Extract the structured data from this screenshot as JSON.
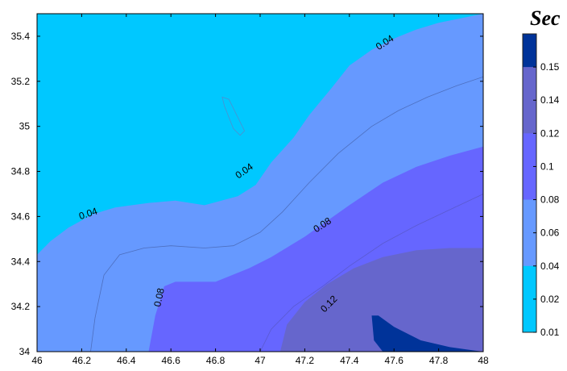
{
  "chart_data": {
    "type": "contour",
    "title": "",
    "xlabel": "",
    "ylabel": "",
    "xlim": [
      46,
      48
    ],
    "ylim": [
      34,
      35.5
    ],
    "x_ticks": [
      "46",
      "46.2",
      "46.4",
      "46.6",
      "46.8",
      "47",
      "47.2",
      "47.4",
      "47.6",
      "47.8",
      "48"
    ],
    "y_ticks": [
      "34",
      "34.2",
      "34.4",
      "34.6",
      "34.8",
      "35",
      "35.2",
      "35.4"
    ],
    "colorbar": {
      "unit_label": "Sec",
      "ticks": [
        "0.15",
        "0.14",
        "0.12",
        "0.1",
        "0.08",
        "0.06",
        "0.04",
        "0.02",
        "0.01"
      ],
      "colors": [
        "#00C8FF",
        "#6699FF",
        "#6666FF",
        "#6666CC",
        "#003399"
      ]
    },
    "contour_labels": [
      {
        "text": "0.04",
        "x": 46.23,
        "y": 34.61,
        "angle": -18
      },
      {
        "text": "0.04",
        "x": 46.93,
        "y": 34.8,
        "angle": -35
      },
      {
        "text": "0.04",
        "x": 47.56,
        "y": 35.37,
        "angle": -33
      },
      {
        "text": "0.08",
        "x": 47.28,
        "y": 34.56,
        "angle": -33
      },
      {
        "text": "0.08",
        "x": 46.55,
        "y": 34.24,
        "angle": -78
      },
      {
        "text": "0.12",
        "x": 47.31,
        "y": 34.21,
        "angle": -45
      }
    ],
    "levels": [
      {
        "name": "lt_0.04",
        "color": "#00C8FF",
        "points": [
          [
            46,
            35.5
          ],
          [
            48,
            35.5
          ],
          [
            48,
            34
          ],
          [
            46,
            34
          ]
        ]
      },
      {
        "name": "0.04_0.08",
        "color": "#6699FF",
        "points": [
          [
            46,
            34.43
          ],
          [
            46.06,
            34.49
          ],
          [
            46.14,
            34.55
          ],
          [
            46.25,
            34.61
          ],
          [
            46.35,
            34.64
          ],
          [
            46.5,
            34.66
          ],
          [
            46.62,
            34.67
          ],
          [
            46.75,
            34.65
          ],
          [
            46.9,
            34.69
          ],
          [
            46.98,
            34.74
          ],
          [
            47.05,
            34.84
          ],
          [
            47.15,
            34.95
          ],
          [
            47.22,
            35.05
          ],
          [
            47.32,
            35.17
          ],
          [
            47.4,
            35.27
          ],
          [
            47.5,
            35.34
          ],
          [
            47.6,
            35.39
          ],
          [
            47.7,
            35.43
          ],
          [
            47.8,
            35.46
          ],
          [
            48,
            35.5
          ],
          [
            48,
            34
          ],
          [
            46,
            34
          ]
        ]
      },
      {
        "name": "0.08_0.12",
        "color": "#6666FF",
        "points": [
          [
            46.5,
            34
          ],
          [
            46.53,
            34.16
          ],
          [
            46.57,
            34.29
          ],
          [
            46.62,
            34.31
          ],
          [
            46.8,
            34.31
          ],
          [
            46.95,
            34.37
          ],
          [
            47.05,
            34.42
          ],
          [
            47.2,
            34.51
          ],
          [
            47.4,
            34.65
          ],
          [
            47.55,
            34.75
          ],
          [
            47.7,
            34.82
          ],
          [
            47.85,
            34.87
          ],
          [
            48,
            34.91
          ],
          [
            48,
            34
          ]
        ]
      },
      {
        "name": "0.12_0.15",
        "color": "#6666CC",
        "points": [
          [
            47.09,
            34
          ],
          [
            47.12,
            34.12
          ],
          [
            47.2,
            34.22
          ],
          [
            47.3,
            34.3
          ],
          [
            47.42,
            34.37
          ],
          [
            47.55,
            34.42
          ],
          [
            47.7,
            34.45
          ],
          [
            47.85,
            34.46
          ],
          [
            48,
            34.46
          ],
          [
            48,
            34
          ]
        ]
      },
      {
        "name": "gt_0.15",
        "color": "#003399",
        "points": [
          [
            47.5,
            34.16
          ],
          [
            47.53,
            34.16
          ],
          [
            47.6,
            34.11
          ],
          [
            47.72,
            34.05
          ],
          [
            47.85,
            34.02
          ],
          [
            47.96,
            34.005
          ],
          [
            48,
            34
          ],
          [
            47.55,
            34
          ],
          [
            47.51,
            34.05
          ]
        ]
      }
    ],
    "contour_lines": [
      {
        "color": "#4d6fbf",
        "points": [
          [
            46.24,
            34
          ],
          [
            46.26,
            34.15
          ],
          [
            46.3,
            34.34
          ],
          [
            46.37,
            34.43
          ],
          [
            46.48,
            34.46
          ],
          [
            46.6,
            34.47
          ],
          [
            46.75,
            34.46
          ],
          [
            46.88,
            34.47
          ],
          [
            47.0,
            34.53
          ],
          [
            47.1,
            34.62
          ],
          [
            47.22,
            34.75
          ],
          [
            47.35,
            34.88
          ],
          [
            47.5,
            35.0
          ],
          [
            47.62,
            35.07
          ],
          [
            47.75,
            35.13
          ],
          [
            47.88,
            35.18
          ],
          [
            48,
            35.22
          ]
        ]
      },
      {
        "color": "#5a5ad0",
        "points": [
          [
            47.0,
            34.0
          ],
          [
            47.05,
            34.1
          ],
          [
            47.15,
            34.2
          ],
          [
            47.28,
            34.29
          ],
          [
            47.4,
            34.38
          ],
          [
            47.55,
            34.48
          ],
          [
            47.7,
            34.56
          ],
          [
            47.85,
            34.63
          ],
          [
            48,
            34.7
          ]
        ]
      },
      {
        "color": "#4d8fd0",
        "points": [
          [
            46.86,
            35.04
          ],
          [
            46.84,
            35.09
          ],
          [
            46.83,
            35.13
          ],
          [
            46.86,
            35.12
          ],
          [
            46.9,
            35.04
          ],
          [
            46.93,
            34.98
          ],
          [
            46.91,
            34.96
          ],
          [
            46.88,
            34.99
          ],
          [
            46.86,
            35.04
          ]
        ]
      }
    ]
  }
}
